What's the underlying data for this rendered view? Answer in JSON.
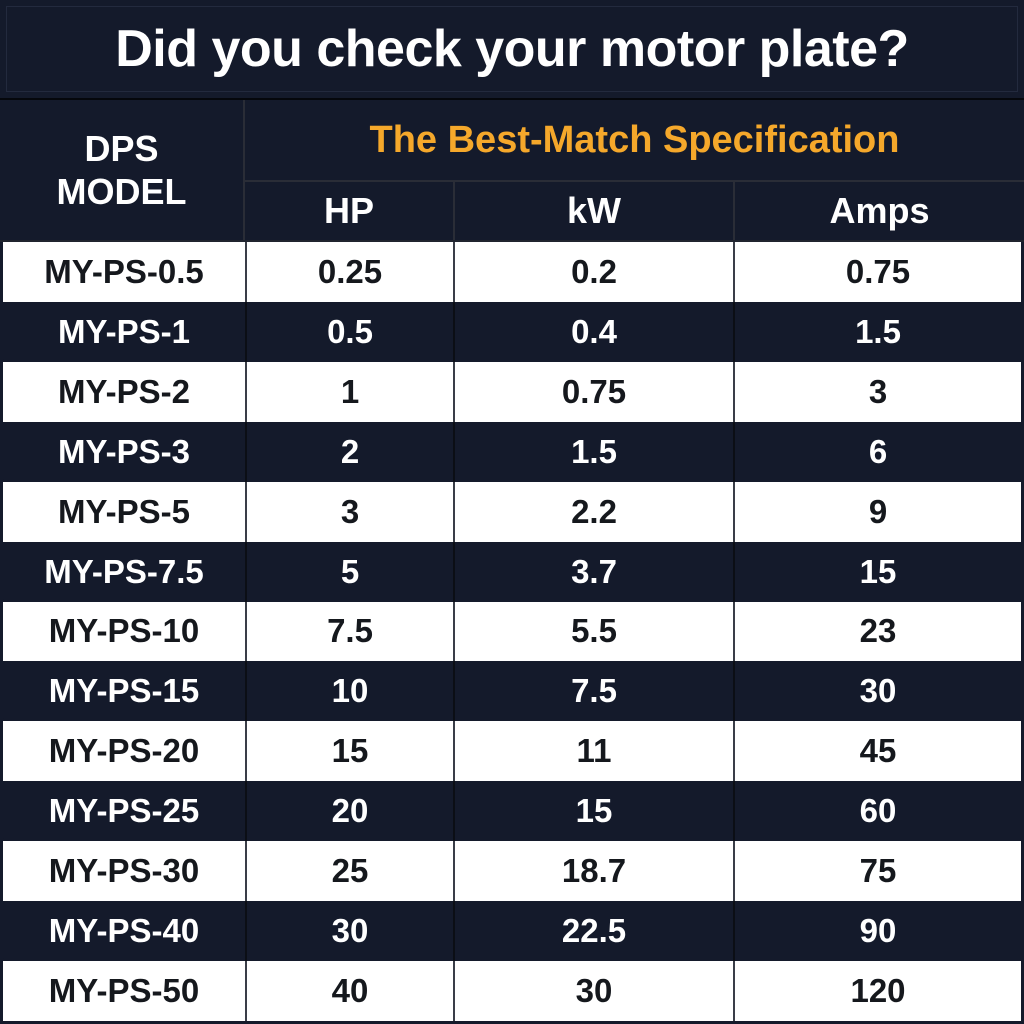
{
  "page": {
    "title": "Did you check your motor plate?"
  },
  "table": {
    "model_header_line1": "DPS",
    "model_header_line2": "MODEL",
    "spec_header": "The Best-Match Specification",
    "columns": [
      "HP",
      "kW",
      "Amps"
    ],
    "rows": [
      {
        "model": "MY-PS-0.5",
        "hp": "0.25",
        "kw": "0.2",
        "amps": "0.75"
      },
      {
        "model": "MY-PS-1",
        "hp": "0.5",
        "kw": "0.4",
        "amps": "1.5"
      },
      {
        "model": "MY-PS-2",
        "hp": "1",
        "kw": "0.75",
        "amps": "3"
      },
      {
        "model": "MY-PS-3",
        "hp": "2",
        "kw": "1.5",
        "amps": "6"
      },
      {
        "model": "MY-PS-5",
        "hp": "3",
        "kw": "2.2",
        "amps": "9"
      },
      {
        "model": "MY-PS-7.5",
        "hp": "5",
        "kw": "3.7",
        "amps": "15"
      },
      {
        "model": "MY-PS-10",
        "hp": "7.5",
        "kw": "5.5",
        "amps": "23"
      },
      {
        "model": "MY-PS-15",
        "hp": "10",
        "kw": "7.5",
        "amps": "30"
      },
      {
        "model": "MY-PS-20",
        "hp": "15",
        "kw": "11",
        "amps": "45"
      },
      {
        "model": "MY-PS-25",
        "hp": "20",
        "kw": "15",
        "amps": "60"
      },
      {
        "model": "MY-PS-30",
        "hp": "25",
        "kw": "18.7",
        "amps": "75"
      },
      {
        "model": "MY-PS-40",
        "hp": "30",
        "kw": "22.5",
        "amps": "90"
      },
      {
        "model": "MY-PS-50",
        "hp": "40",
        "kw": "30",
        "amps": "120"
      }
    ]
  },
  "colors": {
    "background_navy": "#141A2B",
    "accent_orange": "#F5A82B",
    "row_white": "#FFFFFF",
    "text_dark": "#15181D",
    "text_white": "#FFFFFF",
    "gridline": "#2A2D37"
  },
  "chart_data": {
    "type": "table",
    "title": "Did you check your motor plate?",
    "row_header": "DPS MODEL",
    "column_group_header": "The Best-Match Specification",
    "columns": [
      "DPS MODEL",
      "HP",
      "kW",
      "Amps"
    ],
    "rows": [
      [
        "MY-PS-0.5",
        0.25,
        0.2,
        0.75
      ],
      [
        "MY-PS-1",
        0.5,
        0.4,
        1.5
      ],
      [
        "MY-PS-2",
        1,
        0.75,
        3
      ],
      [
        "MY-PS-3",
        2,
        1.5,
        6
      ],
      [
        "MY-PS-5",
        3,
        2.2,
        9
      ],
      [
        "MY-PS-7.5",
        5,
        3.7,
        15
      ],
      [
        "MY-PS-10",
        7.5,
        5.5,
        23
      ],
      [
        "MY-PS-15",
        10,
        7.5,
        30
      ],
      [
        "MY-PS-20",
        15,
        11,
        45
      ],
      [
        "MY-PS-25",
        20,
        15,
        60
      ],
      [
        "MY-PS-30",
        25,
        18.7,
        75
      ],
      [
        "MY-PS-40",
        30,
        22.5,
        90
      ],
      [
        "MY-PS-50",
        40,
        30,
        120
      ]
    ],
    "layout": {
      "striped": true,
      "stripe_colors": [
        "#FFFFFF",
        "#141A2B"
      ],
      "header_bg": "#141A2B"
    }
  }
}
